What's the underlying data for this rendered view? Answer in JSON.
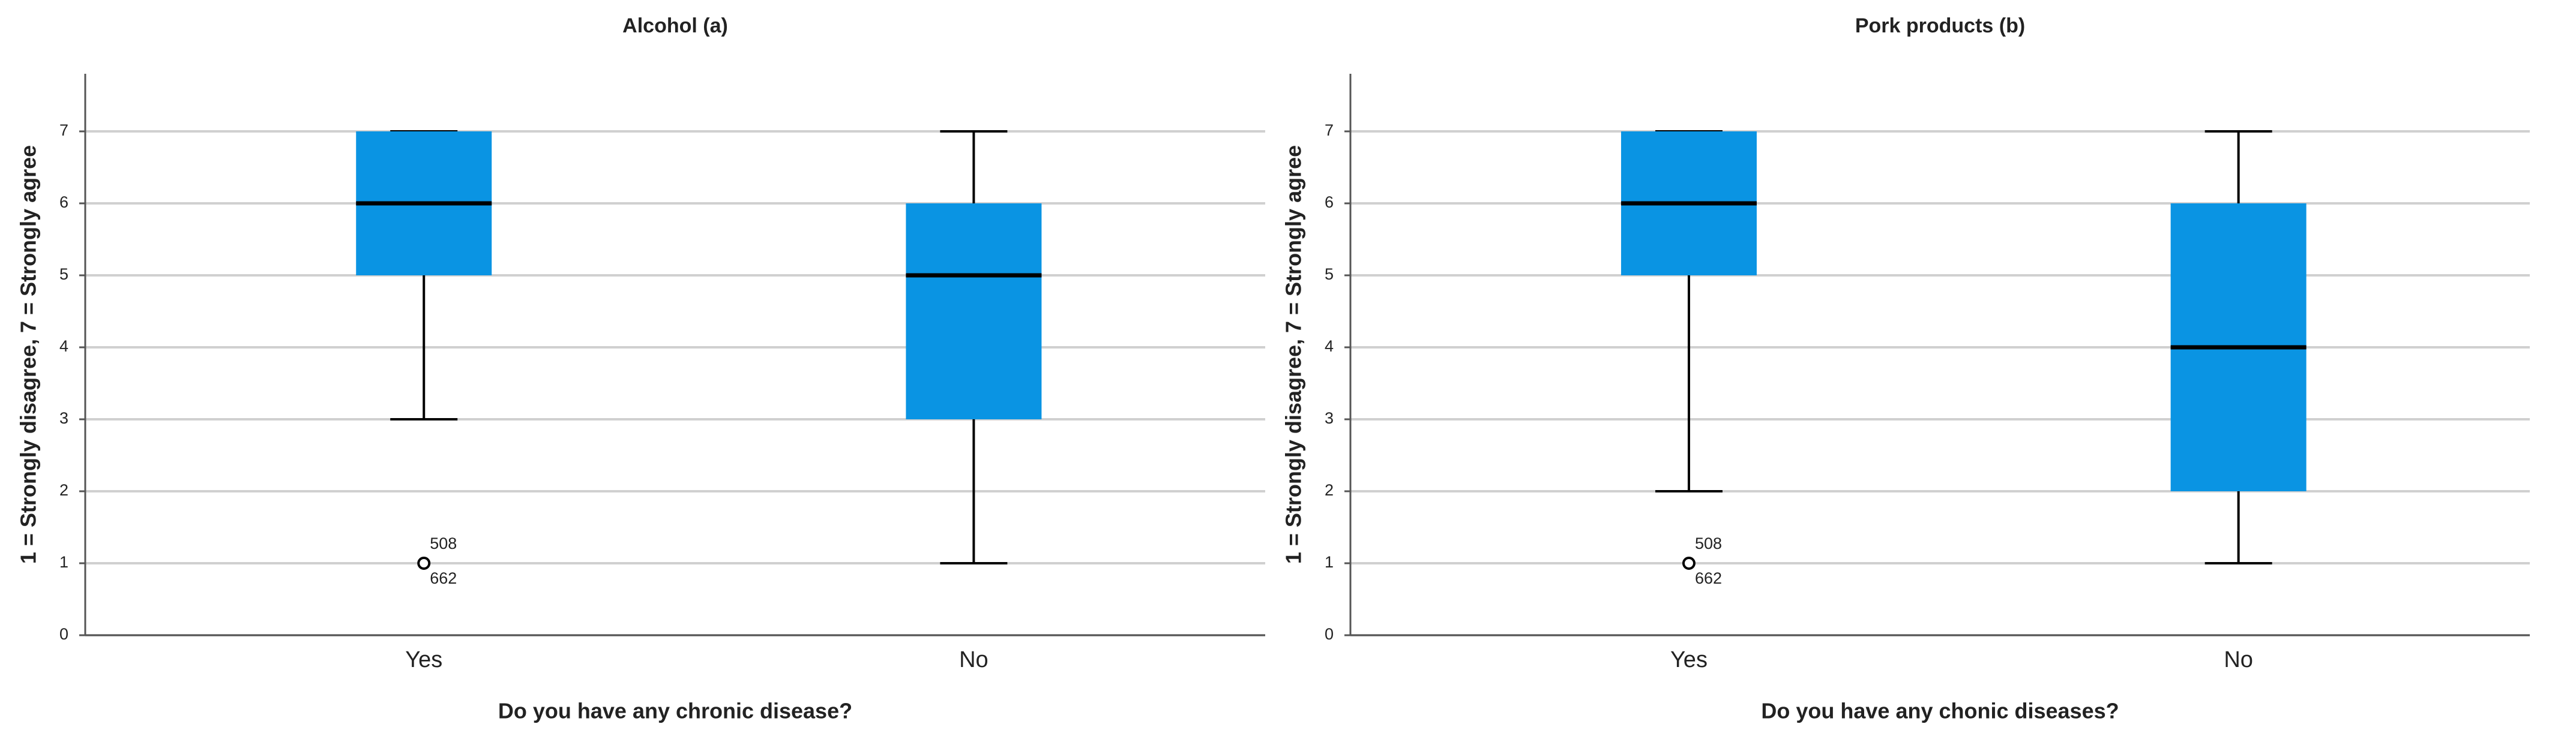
{
  "chart_data": [
    {
      "type": "box",
      "title": "Alcohol (a)",
      "ylabel": "1 = Strongly disagree, 7 = Strongly agree",
      "xlabel": "Do you have any chronic disease?",
      "categories": [
        "Yes",
        "No"
      ],
      "color": "#0a94e3",
      "boxes": [
        {
          "whislo": 3,
          "q1": 5,
          "med": 6,
          "q3": 7,
          "whishi": 7,
          "outliers": [
            1
          ],
          "outlier_labels": [
            "508",
            "662"
          ]
        },
        {
          "whislo": 1,
          "q1": 3,
          "med": 5,
          "q3": 6,
          "whishi": 7
        }
      ],
      "ylim": [
        0,
        7.8
      ],
      "yticks": [
        0,
        1,
        2,
        3,
        4,
        5,
        6,
        7
      ],
      "grid": true
    },
    {
      "type": "box",
      "title": "Pork products (b)",
      "ylabel": "1 = Strongly disagree, 7 = Strongly agree",
      "xlabel": "Do you have any chonic diseases?",
      "categories": [
        "Yes",
        "No"
      ],
      "color": "#0a94e3",
      "boxes": [
        {
          "whislo": 2,
          "q1": 5,
          "med": 6,
          "q3": 7,
          "whishi": 7,
          "outliers": [
            1
          ],
          "outlier_labels": [
            "508",
            "662"
          ]
        },
        {
          "whislo": 1,
          "q1": 2,
          "med": 4,
          "q3": 6,
          "whishi": 7
        }
      ],
      "ylim": [
        0,
        7.8
      ],
      "yticks": [
        0,
        1,
        2,
        3,
        4,
        5,
        6,
        7
      ],
      "grid": true
    }
  ]
}
